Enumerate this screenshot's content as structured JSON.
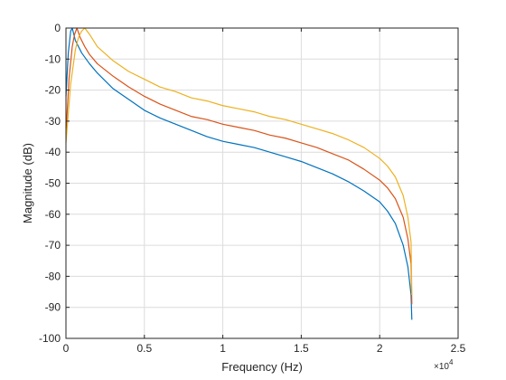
{
  "chart_data": {
    "type": "line",
    "title": "",
    "xlabel": "Frequency (Hz)",
    "ylabel": "Magnitude (dB)",
    "x_exponent_label": "×10",
    "x_exponent_power": "4",
    "xlim": [
      0,
      25000
    ],
    "ylim": [
      -100,
      0
    ],
    "x_ticks": [
      0,
      5000,
      10000,
      15000,
      20000,
      25000
    ],
    "x_tick_labels": [
      "0",
      "0.5",
      "1",
      "1.5",
      "2",
      "2.5"
    ],
    "y_ticks": [
      0,
      -10,
      -20,
      -30,
      -40,
      -50,
      -60,
      -70,
      -80,
      -90,
      -100
    ],
    "y_tick_labels": [
      "0",
      "-10",
      "-20",
      "-30",
      "-40",
      "-50",
      "-60",
      "-70",
      "-80",
      "-90",
      "-100"
    ],
    "grid": true,
    "legend": "none",
    "series": [
      {
        "color": "#0072BD",
        "points": [
          [
            0,
            -22
          ],
          [
            150,
            -8
          ],
          [
            300,
            -1
          ],
          [
            400,
            0
          ],
          [
            600,
            -4
          ],
          [
            1000,
            -8
          ],
          [
            1500,
            -11.5
          ],
          [
            2000,
            -14.5
          ],
          [
            3000,
            -19.5
          ],
          [
            4000,
            -23
          ],
          [
            5000,
            -26.5
          ],
          [
            6000,
            -29
          ],
          [
            7000,
            -31
          ],
          [
            8000,
            -33
          ],
          [
            9000,
            -35
          ],
          [
            10000,
            -36.5
          ],
          [
            11000,
            -37.5
          ],
          [
            12000,
            -38.5
          ],
          [
            13000,
            -40
          ],
          [
            14000,
            -41.5
          ],
          [
            15000,
            -43
          ],
          [
            16000,
            -45
          ],
          [
            17000,
            -47
          ],
          [
            18000,
            -49.5
          ],
          [
            19000,
            -52.5
          ],
          [
            20000,
            -56
          ],
          [
            20500,
            -59
          ],
          [
            21000,
            -63
          ],
          [
            21500,
            -70
          ],
          [
            21800,
            -77
          ],
          [
            22000,
            -86
          ],
          [
            22050,
            -94
          ]
        ]
      },
      {
        "color": "#D95319",
        "points": [
          [
            0,
            -34
          ],
          [
            200,
            -16
          ],
          [
            400,
            -6
          ],
          [
            550,
            -2
          ],
          [
            700,
            0
          ],
          [
            900,
            -3
          ],
          [
            1200,
            -6
          ],
          [
            1500,
            -8.5
          ],
          [
            2000,
            -11.5
          ],
          [
            3000,
            -15.5
          ],
          [
            4000,
            -19
          ],
          [
            5000,
            -22
          ],
          [
            6000,
            -24.5
          ],
          [
            7000,
            -26.5
          ],
          [
            8000,
            -28.5
          ],
          [
            9000,
            -29.5
          ],
          [
            10000,
            -31
          ],
          [
            11000,
            -32
          ],
          [
            12000,
            -33
          ],
          [
            13000,
            -34.5
          ],
          [
            14000,
            -35.5
          ],
          [
            15000,
            -37
          ],
          [
            16000,
            -38.5
          ],
          [
            17000,
            -40.5
          ],
          [
            18000,
            -42.5
          ],
          [
            19000,
            -45.5
          ],
          [
            20000,
            -49
          ],
          [
            20500,
            -51.5
          ],
          [
            21000,
            -55
          ],
          [
            21500,
            -61
          ],
          [
            21800,
            -68
          ],
          [
            22000,
            -76
          ],
          [
            22050,
            -89
          ]
        ]
      },
      {
        "color": "#EDB120",
        "points": [
          [
            0,
            -37
          ],
          [
            300,
            -18
          ],
          [
            600,
            -7
          ],
          [
            800,
            -3
          ],
          [
            1000,
            -1
          ],
          [
            1200,
            0
          ],
          [
            1500,
            -2
          ],
          [
            2000,
            -6
          ],
          [
            3000,
            -10.5
          ],
          [
            4000,
            -14
          ],
          [
            5000,
            -16.5
          ],
          [
            6000,
            -19
          ],
          [
            7000,
            -20.5
          ],
          [
            8000,
            -22.5
          ],
          [
            9000,
            -23.5
          ],
          [
            10000,
            -25
          ],
          [
            11000,
            -26
          ],
          [
            12000,
            -27
          ],
          [
            13000,
            -28.5
          ],
          [
            14000,
            -29.5
          ],
          [
            15000,
            -31
          ],
          [
            16000,
            -32.5
          ],
          [
            17000,
            -34
          ],
          [
            18000,
            -36
          ],
          [
            19000,
            -38.5
          ],
          [
            20000,
            -42
          ],
          [
            20500,
            -44.5
          ],
          [
            21000,
            -48
          ],
          [
            21500,
            -54
          ],
          [
            21800,
            -61
          ],
          [
            22000,
            -69
          ],
          [
            22050,
            -86
          ]
        ]
      }
    ]
  }
}
